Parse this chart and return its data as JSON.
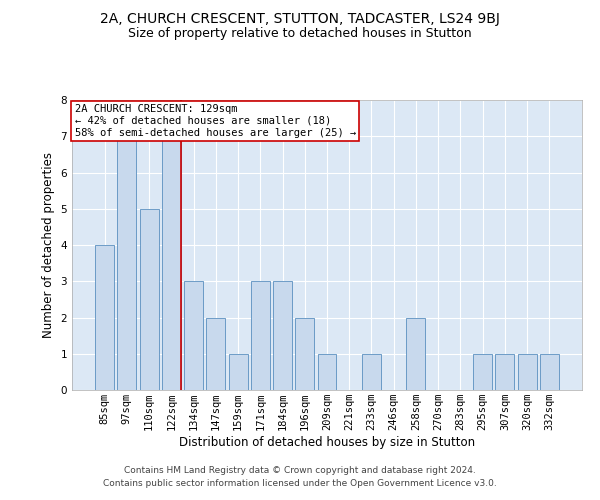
{
  "title": "2A, CHURCH CRESCENT, STUTTON, TADCASTER, LS24 9BJ",
  "subtitle": "Size of property relative to detached houses in Stutton",
  "xlabel": "Distribution of detached houses by size in Stutton",
  "ylabel": "Number of detached properties",
  "categories": [
    "85sqm",
    "97sqm",
    "110sqm",
    "122sqm",
    "134sqm",
    "147sqm",
    "159sqm",
    "171sqm",
    "184sqm",
    "196sqm",
    "209sqm",
    "221sqm",
    "233sqm",
    "246sqm",
    "258sqm",
    "270sqm",
    "283sqm",
    "295sqm",
    "307sqm",
    "320sqm",
    "332sqm"
  ],
  "values": [
    4,
    7,
    5,
    7,
    3,
    2,
    1,
    3,
    3,
    2,
    1,
    0,
    1,
    0,
    2,
    0,
    0,
    1,
    1,
    1,
    1
  ],
  "bar_color": "#c8d9ed",
  "bar_edge_color": "#5a8fc0",
  "marker_line_index": 3,
  "marker_line_color": "#cc0000",
  "annotation_lines": [
    "2A CHURCH CRESCENT: 129sqm",
    "← 42% of detached houses are smaller (18)",
    "58% of semi-detached houses are larger (25) →"
  ],
  "annotation_box_edge": "#cc0000",
  "ylim": [
    0,
    8
  ],
  "yticks": [
    0,
    1,
    2,
    3,
    4,
    5,
    6,
    7,
    8
  ],
  "bg_color": "#dce8f5",
  "footer_line1": "Contains HM Land Registry data © Crown copyright and database right 2024.",
  "footer_line2": "Contains public sector information licensed under the Open Government Licence v3.0.",
  "title_fontsize": 10,
  "subtitle_fontsize": 9,
  "xlabel_fontsize": 8.5,
  "ylabel_fontsize": 8.5,
  "tick_fontsize": 7.5,
  "annotation_fontsize": 7.5,
  "footer_fontsize": 6.5
}
